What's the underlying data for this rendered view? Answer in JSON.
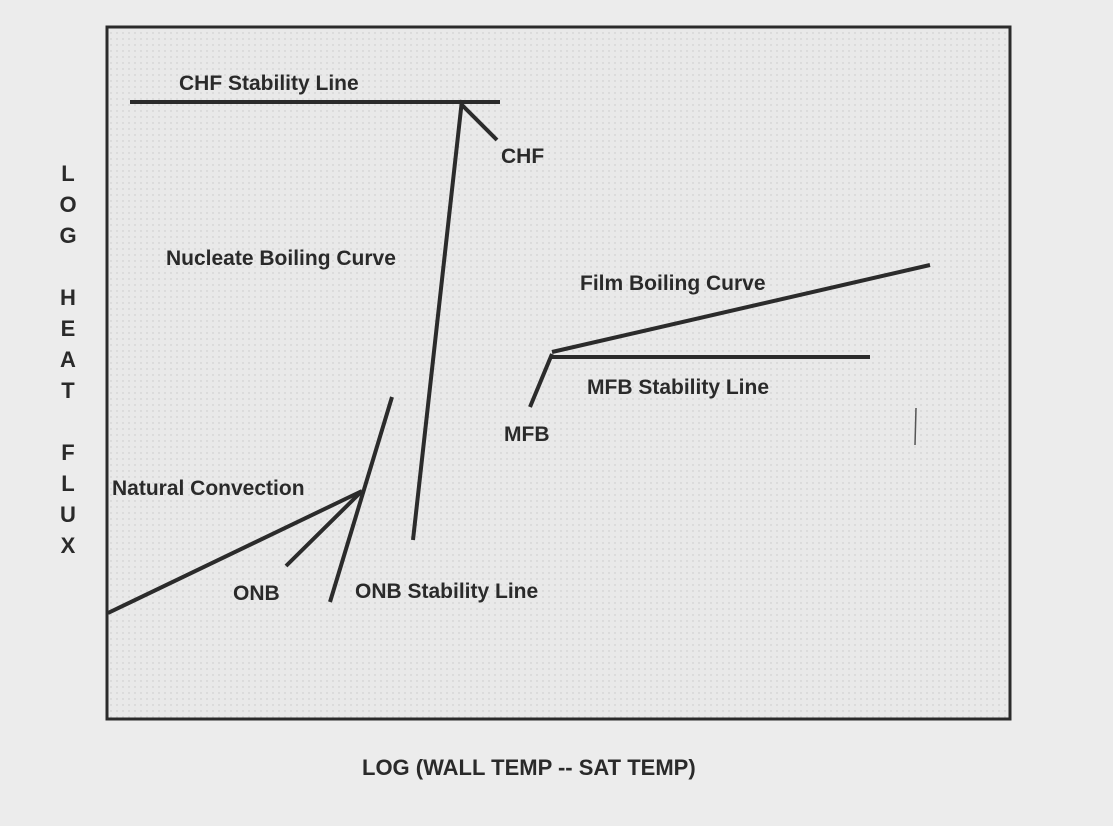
{
  "x_axis_label": "LOG (WALL TEMP -- SAT TEMP)",
  "y_axis_label": "LOG HEAT FLUX",
  "y_axis_letters": [
    "L",
    "O",
    "G",
    "H",
    "E",
    "A",
    "T",
    "F",
    "L",
    "U",
    "X"
  ],
  "labels": {
    "chf_stability_line": "CHF Stability Line",
    "chf": "CHF",
    "nucleate_boiling_curve": "Nucleate Boiling Curve",
    "film_boiling_curve": "Film Boiling Curve",
    "mfb_stability_line": "MFB Stability Line",
    "mfb": "MFB",
    "natural_convection": "Natural Convection",
    "onb": "ONB",
    "onb_stability_line": "ONB Stability Line"
  },
  "colors": {
    "background": "#ececec",
    "plot_area": "#e6e6e6",
    "ink": "#2b2b2b"
  }
}
